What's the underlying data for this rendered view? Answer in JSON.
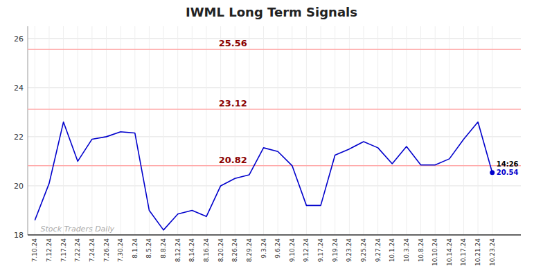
{
  "chart_data": {
    "type": "line",
    "title": "IWML Long Term Signals",
    "categories": [
      "7.10.24",
      "7.12.24",
      "7.17.24",
      "7.22.24",
      "7.24.24",
      "7.26.24",
      "7.30.24",
      "8.1.24",
      "8.5.24",
      "8.8.24",
      "8.12.24",
      "8.14.24",
      "8.16.24",
      "8.20.24",
      "8.26.24",
      "8.29.24",
      "9.3.24",
      "9.6.24",
      "9.10.24",
      "9.12.24",
      "9.17.24",
      "9.19.24",
      "9.23.24",
      "9.25.24",
      "9.27.24",
      "10.1.24",
      "10.3.24",
      "10.8.24",
      "10.10.24",
      "10.14.24",
      "10.17.24",
      "10.21.24",
      "10.23.24"
    ],
    "values": [
      18.6,
      20.1,
      22.6,
      21.0,
      21.9,
      22.0,
      22.2,
      22.15,
      19.0,
      18.2,
      18.85,
      19.0,
      18.75,
      20.0,
      20.3,
      20.45,
      21.55,
      21.4,
      20.82,
      19.2,
      19.2,
      21.25,
      21.5,
      21.8,
      21.55,
      20.9,
      21.6,
      20.85,
      20.85,
      21.1,
      21.9,
      22.6,
      20.54
    ],
    "color": "#0000cc",
    "hlines": [
      {
        "value": 25.56,
        "label": "25.56"
      },
      {
        "value": 23.12,
        "label": "23.12"
      },
      {
        "value": 20.82,
        "label": "20.82"
      }
    ],
    "annotations": [
      "14:26",
      "Stock Traders Daily"
    ],
    "ylim": [
      18.0,
      26.5
    ],
    "yticks": [
      18,
      20,
      22,
      24,
      26
    ],
    "grid": true
  }
}
